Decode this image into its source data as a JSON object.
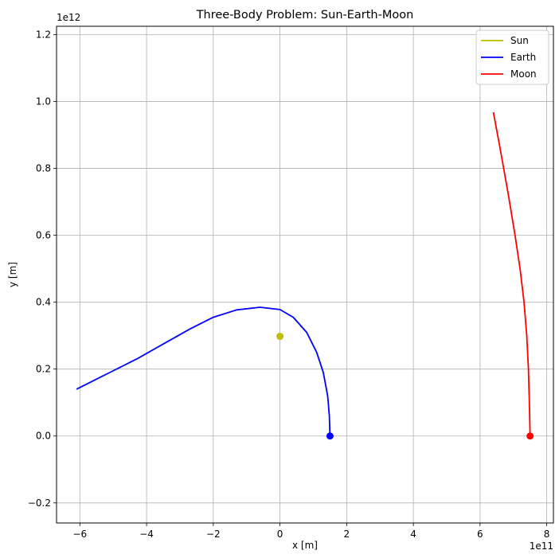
{
  "chart_data": {
    "type": "line",
    "title": "Three-Body Problem: Sun-Earth-Moon",
    "xlabel": "x [m]",
    "ylabel": "y [m]",
    "x_offset_label": "1e11",
    "y_offset_label": "1e12",
    "xlim": [
      -6.7,
      8.2
    ],
    "ylim": [
      -0.26,
      1.225
    ],
    "x_scale": 100000000000.0,
    "y_scale": 1000000000000.0,
    "xticks": [
      -6,
      -4,
      -2,
      0,
      2,
      4,
      6,
      8
    ],
    "xtick_labels": [
      "−6",
      "−4",
      "−2",
      "0",
      "2",
      "4",
      "6",
      "8"
    ],
    "yticks": [
      -0.2,
      0.0,
      0.2,
      0.4,
      0.6,
      0.8,
      1.0,
      1.2
    ],
    "ytick_labels": [
      "−0.2",
      "0.0",
      "0.2",
      "0.4",
      "0.6",
      "0.8",
      "1.0",
      "1.2"
    ],
    "grid": true,
    "legend_position": "top-right",
    "series": [
      {
        "name": "Sun",
        "color": "#bfbf00",
        "x": [
          0.0
        ],
        "y": [
          0.298
        ],
        "marker": {
          "x": 0.0,
          "y": 0.298
        }
      },
      {
        "name": "Earth",
        "color": "#0000ff",
        "x": [
          1.5,
          1.48,
          1.43,
          1.3,
          1.1,
          0.8,
          0.4,
          0.0,
          -0.6,
          -1.3,
          -2.0,
          -2.7,
          -3.5,
          -4.3,
          -5.2,
          -6.1
        ],
        "y": [
          0.0,
          0.06,
          0.12,
          0.19,
          0.25,
          0.31,
          0.355,
          0.378,
          0.385,
          0.377,
          0.355,
          0.32,
          0.275,
          0.23,
          0.185,
          0.14
        ],
        "marker": {
          "x": 1.5,
          "y": 0.0
        }
      },
      {
        "name": "Moon",
        "color": "#ff0000",
        "x": [
          7.5,
          7.48,
          7.45,
          7.4,
          7.32,
          7.2,
          7.05,
          6.85,
          6.62,
          6.4
        ],
        "y": [
          0.0,
          0.1,
          0.2,
          0.3,
          0.4,
          0.5,
          0.6,
          0.72,
          0.85,
          0.968
        ],
        "marker": {
          "x": 7.5,
          "y": 0.0
        }
      }
    ]
  }
}
